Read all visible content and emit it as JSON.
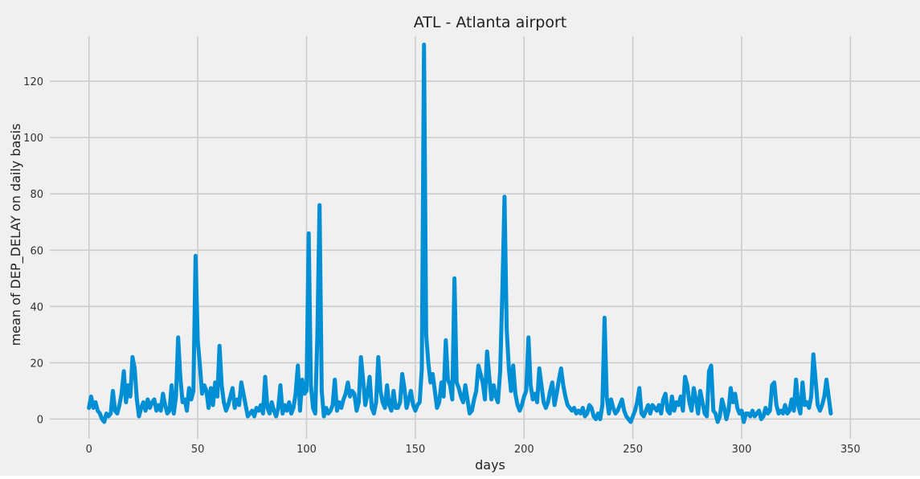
{
  "chart_data": {
    "type": "line",
    "title": "ATL - Atlanta airport",
    "xlabel": "days",
    "ylabel": "mean of DEP_DELAY on daily basis",
    "xlim": [
      -18,
      382
    ],
    "ylim": [
      -7,
      136
    ],
    "xticks": [
      0,
      50,
      100,
      150,
      200,
      250,
      300,
      350
    ],
    "yticks": [
      0,
      20,
      40,
      60,
      80,
      100,
      120
    ],
    "grid": true,
    "line_color": "#008fd5",
    "background_color": "#f0f0f0",
    "grid_color": "#cbcbcb",
    "series": [
      {
        "points": [
          [
            0,
            4
          ],
          [
            1,
            8
          ],
          [
            2,
            4
          ],
          [
            3,
            6
          ],
          [
            4,
            3
          ],
          [
            5,
            2
          ],
          [
            6,
            0
          ],
          [
            7,
            -1
          ],
          [
            8,
            2
          ],
          [
            9,
            1
          ],
          [
            10,
            2
          ],
          [
            11,
            10
          ],
          [
            12,
            3
          ],
          [
            13,
            2
          ],
          [
            14,
            5
          ],
          [
            15,
            9
          ],
          [
            16,
            17
          ],
          [
            17,
            6
          ],
          [
            18,
            12
          ],
          [
            19,
            8
          ],
          [
            20,
            22
          ],
          [
            21,
            18
          ],
          [
            22,
            7
          ],
          [
            23,
            1
          ],
          [
            24,
            4
          ],
          [
            25,
            6
          ],
          [
            26,
            3
          ],
          [
            27,
            7
          ],
          [
            28,
            4
          ],
          [
            29,
            6
          ],
          [
            30,
            7
          ],
          [
            31,
            3
          ],
          [
            32,
            5
          ],
          [
            33,
            3
          ],
          [
            34,
            9
          ],
          [
            35,
            5
          ],
          [
            36,
            2
          ],
          [
            37,
            3
          ],
          [
            38,
            12
          ],
          [
            39,
            2
          ],
          [
            40,
            8
          ],
          [
            41,
            29
          ],
          [
            42,
            15
          ],
          [
            43,
            6
          ],
          [
            44,
            7
          ],
          [
            45,
            3
          ],
          [
            46,
            11
          ],
          [
            47,
            7
          ],
          [
            48,
            10
          ],
          [
            49,
            58
          ],
          [
            50,
            28
          ],
          [
            51,
            19
          ],
          [
            52,
            9
          ],
          [
            53,
            12
          ],
          [
            54,
            10
          ],
          [
            55,
            4
          ],
          [
            56,
            11
          ],
          [
            57,
            5
          ],
          [
            58,
            13
          ],
          [
            59,
            8
          ],
          [
            60,
            26
          ],
          [
            61,
            12
          ],
          [
            62,
            6
          ],
          [
            63,
            3
          ],
          [
            64,
            5
          ],
          [
            65,
            8
          ],
          [
            66,
            11
          ],
          [
            67,
            4
          ],
          [
            68,
            7
          ],
          [
            69,
            5
          ],
          [
            70,
            13
          ],
          [
            71,
            9
          ],
          [
            72,
            5
          ],
          [
            73,
            1
          ],
          [
            74,
            2
          ],
          [
            75,
            3
          ],
          [
            76,
            1
          ],
          [
            77,
            4
          ],
          [
            78,
            3
          ],
          [
            79,
            5
          ],
          [
            80,
            2
          ],
          [
            81,
            15
          ],
          [
            82,
            4
          ],
          [
            83,
            2
          ],
          [
            84,
            6
          ],
          [
            85,
            3
          ],
          [
            86,
            1
          ],
          [
            87,
            4
          ],
          [
            88,
            12
          ],
          [
            89,
            2
          ],
          [
            90,
            5
          ],
          [
            91,
            3
          ],
          [
            92,
            6
          ],
          [
            93,
            2
          ],
          [
            94,
            4
          ],
          [
            95,
            9
          ],
          [
            96,
            19
          ],
          [
            97,
            3
          ],
          [
            98,
            14
          ],
          [
            99,
            9
          ],
          [
            100,
            10
          ],
          [
            101,
            66
          ],
          [
            102,
            12
          ],
          [
            103,
            4
          ],
          [
            104,
            2
          ],
          [
            105,
            30
          ],
          [
            106,
            76
          ],
          [
            107,
            10
          ],
          [
            108,
            1
          ],
          [
            109,
            4
          ],
          [
            110,
            2
          ],
          [
            111,
            3
          ],
          [
            112,
            5
          ],
          [
            113,
            14
          ],
          [
            114,
            3
          ],
          [
            115,
            6
          ],
          [
            116,
            4
          ],
          [
            117,
            7
          ],
          [
            118,
            9
          ],
          [
            119,
            13
          ],
          [
            120,
            8
          ],
          [
            121,
            10
          ],
          [
            122,
            9
          ],
          [
            123,
            3
          ],
          [
            124,
            6
          ],
          [
            125,
            22
          ],
          [
            126,
            14
          ],
          [
            127,
            5
          ],
          [
            128,
            9
          ],
          [
            129,
            15
          ],
          [
            130,
            4
          ],
          [
            131,
            2
          ],
          [
            132,
            6
          ],
          [
            133,
            22
          ],
          [
            134,
            10
          ],
          [
            135,
            6
          ],
          [
            136,
            4
          ],
          [
            137,
            12
          ],
          [
            138,
            5
          ],
          [
            139,
            3
          ],
          [
            140,
            10
          ],
          [
            141,
            4
          ],
          [
            142,
            4
          ],
          [
            143,
            6
          ],
          [
            144,
            16
          ],
          [
            145,
            11
          ],
          [
            146,
            4
          ],
          [
            147,
            7
          ],
          [
            148,
            10
          ],
          [
            149,
            5
          ],
          [
            150,
            3
          ],
          [
            151,
            5
          ],
          [
            152,
            6
          ],
          [
            153,
            18
          ],
          [
            154,
            133
          ],
          [
            155,
            30
          ],
          [
            156,
            20
          ],
          [
            157,
            13
          ],
          [
            158,
            16
          ],
          [
            159,
            10
          ],
          [
            160,
            4
          ],
          [
            161,
            6
          ],
          [
            162,
            13
          ],
          [
            163,
            8
          ],
          [
            164,
            28
          ],
          [
            165,
            14
          ],
          [
            166,
            12
          ],
          [
            167,
            7
          ],
          [
            168,
            50
          ],
          [
            169,
            13
          ],
          [
            170,
            11
          ],
          [
            171,
            8
          ],
          [
            172,
            6
          ],
          [
            173,
            12
          ],
          [
            174,
            7
          ],
          [
            175,
            2
          ],
          [
            176,
            3
          ],
          [
            177,
            7
          ],
          [
            178,
            10
          ],
          [
            179,
            19
          ],
          [
            180,
            16
          ],
          [
            181,
            13
          ],
          [
            182,
            7
          ],
          [
            183,
            24
          ],
          [
            184,
            15
          ],
          [
            185,
            7
          ],
          [
            186,
            12
          ],
          [
            187,
            8
          ],
          [
            188,
            6
          ],
          [
            189,
            17
          ],
          [
            190,
            45
          ],
          [
            191,
            79
          ],
          [
            192,
            32
          ],
          [
            193,
            18
          ],
          [
            194,
            10
          ],
          [
            195,
            19
          ],
          [
            196,
            9
          ],
          [
            197,
            5
          ],
          [
            198,
            3
          ],
          [
            199,
            5
          ],
          [
            200,
            8
          ],
          [
            201,
            10
          ],
          [
            202,
            29
          ],
          [
            203,
            12
          ],
          [
            204,
            7
          ],
          [
            205,
            9
          ],
          [
            206,
            6
          ],
          [
            207,
            18
          ],
          [
            208,
            12
          ],
          [
            209,
            6
          ],
          [
            210,
            4
          ],
          [
            211,
            6
          ],
          [
            212,
            10
          ],
          [
            213,
            13
          ],
          [
            214,
            5
          ],
          [
            215,
            9
          ],
          [
            216,
            14
          ],
          [
            217,
            18
          ],
          [
            218,
            12
          ],
          [
            219,
            8
          ],
          [
            220,
            5
          ],
          [
            221,
            4
          ],
          [
            222,
            3
          ],
          [
            223,
            4
          ],
          [
            224,
            2
          ],
          [
            225,
            3
          ],
          [
            226,
            2
          ],
          [
            227,
            4
          ],
          [
            228,
            1
          ],
          [
            229,
            2
          ],
          [
            230,
            5
          ],
          [
            231,
            4
          ],
          [
            232,
            1
          ],
          [
            233,
            0
          ],
          [
            234,
            2
          ],
          [
            235,
            0
          ],
          [
            236,
            5
          ],
          [
            237,
            36
          ],
          [
            238,
            8
          ],
          [
            239,
            2
          ],
          [
            240,
            7
          ],
          [
            241,
            4
          ],
          [
            242,
            2
          ],
          [
            243,
            3
          ],
          [
            244,
            5
          ],
          [
            245,
            7
          ],
          [
            246,
            3
          ],
          [
            247,
            1
          ],
          [
            248,
            0
          ],
          [
            249,
            -1
          ],
          [
            250,
            1
          ],
          [
            251,
            3
          ],
          [
            252,
            6
          ],
          [
            253,
            11
          ],
          [
            254,
            2
          ],
          [
            255,
            1
          ],
          [
            256,
            3
          ],
          [
            257,
            5
          ],
          [
            258,
            2
          ],
          [
            259,
            5
          ],
          [
            260,
            4
          ],
          [
            261,
            3
          ],
          [
            262,
            5
          ],
          [
            263,
            2
          ],
          [
            264,
            7
          ],
          [
            265,
            9
          ],
          [
            266,
            3
          ],
          [
            267,
            2
          ],
          [
            268,
            8
          ],
          [
            269,
            3
          ],
          [
            270,
            6
          ],
          [
            271,
            5
          ],
          [
            272,
            8
          ],
          [
            273,
            3
          ],
          [
            274,
            15
          ],
          [
            275,
            12
          ],
          [
            276,
            6
          ],
          [
            277,
            3
          ],
          [
            278,
            11
          ],
          [
            279,
            7
          ],
          [
            280,
            2
          ],
          [
            281,
            10
          ],
          [
            282,
            6
          ],
          [
            283,
            2
          ],
          [
            284,
            1
          ],
          [
            285,
            17
          ],
          [
            286,
            19
          ],
          [
            287,
            3
          ],
          [
            288,
            2
          ],
          [
            289,
            -1
          ],
          [
            290,
            1
          ],
          [
            291,
            7
          ],
          [
            292,
            4
          ],
          [
            293,
            0
          ],
          [
            294,
            3
          ],
          [
            295,
            11
          ],
          [
            296,
            6
          ],
          [
            297,
            9
          ],
          [
            298,
            4
          ],
          [
            299,
            2
          ],
          [
            300,
            3
          ],
          [
            301,
            -1
          ],
          [
            302,
            2
          ],
          [
            303,
            2
          ],
          [
            304,
            1
          ],
          [
            305,
            3
          ],
          [
            306,
            1
          ],
          [
            307,
            2
          ],
          [
            308,
            3
          ],
          [
            309,
            0
          ],
          [
            310,
            1
          ],
          [
            311,
            4
          ],
          [
            312,
            2
          ],
          [
            313,
            3
          ],
          [
            314,
            12
          ],
          [
            315,
            13
          ],
          [
            316,
            5
          ],
          [
            317,
            2
          ],
          [
            318,
            3
          ],
          [
            319,
            2
          ],
          [
            320,
            5
          ],
          [
            321,
            2
          ],
          [
            322,
            3
          ],
          [
            323,
            7
          ],
          [
            324,
            3
          ],
          [
            325,
            14
          ],
          [
            326,
            5
          ],
          [
            327,
            2
          ],
          [
            328,
            13
          ],
          [
            329,
            5
          ],
          [
            330,
            6
          ],
          [
            331,
            4
          ],
          [
            332,
            8
          ],
          [
            333,
            23
          ],
          [
            334,
            14
          ],
          [
            335,
            5
          ],
          [
            336,
            3
          ],
          [
            337,
            5
          ],
          [
            338,
            8
          ],
          [
            339,
            14
          ],
          [
            340,
            8
          ],
          [
            341,
            2
          ]
        ]
      }
    ]
  }
}
